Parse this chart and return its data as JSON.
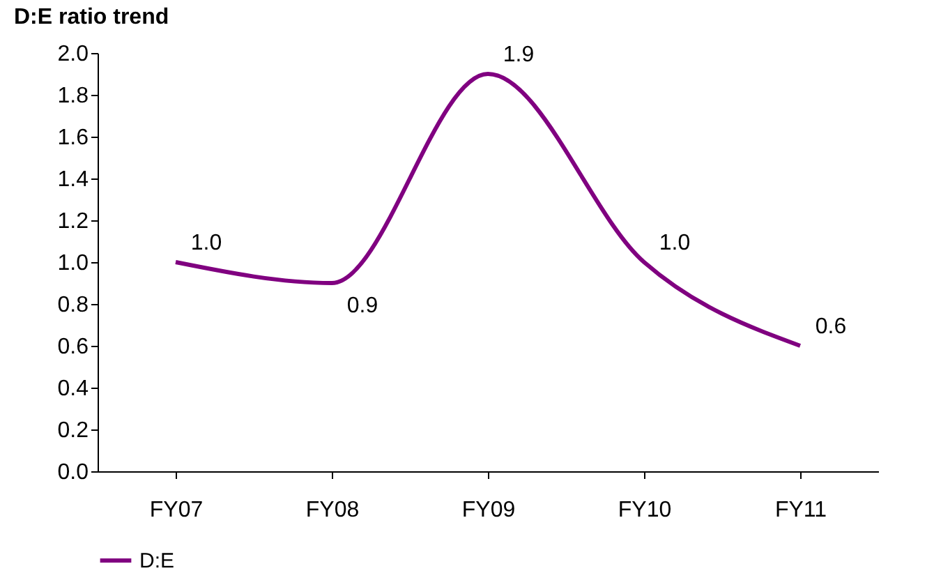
{
  "chart_data": {
    "type": "line",
    "title": "D:E ratio trend",
    "categories": [
      "FY07",
      "FY08",
      "FY09",
      "FY10",
      "FY11"
    ],
    "series": [
      {
        "name": "D:E",
        "color": "#800080",
        "values": [
          1.0,
          0.9,
          1.9,
          1.0,
          0.6
        ],
        "value_labels": [
          "1.0",
          "0.9",
          "1.9",
          "1.0",
          "0.6"
        ]
      }
    ],
    "ylim": [
      0,
      2
    ],
    "yticks": [
      {
        "value": 0,
        "label": "0.0"
      },
      {
        "value": 0.2,
        "label": "0.2"
      },
      {
        "value": 0.4,
        "label": "0.4"
      },
      {
        "value": 0.6,
        "label": "0.6"
      },
      {
        "value": 0.8,
        "label": "0.8"
      },
      {
        "value": 1,
        "label": "1.0"
      },
      {
        "value": 1.2,
        "label": "1.2"
      },
      {
        "value": 1.4,
        "label": "1.4"
      },
      {
        "value": 1.6,
        "label": "1.6"
      },
      {
        "value": 1.8,
        "label": "1.8"
      },
      {
        "value": 2,
        "label": "2.0"
      }
    ],
    "grid": false,
    "data_labels": true,
    "legend": "bottom",
    "marker": "none",
    "line_style": "solid"
  }
}
